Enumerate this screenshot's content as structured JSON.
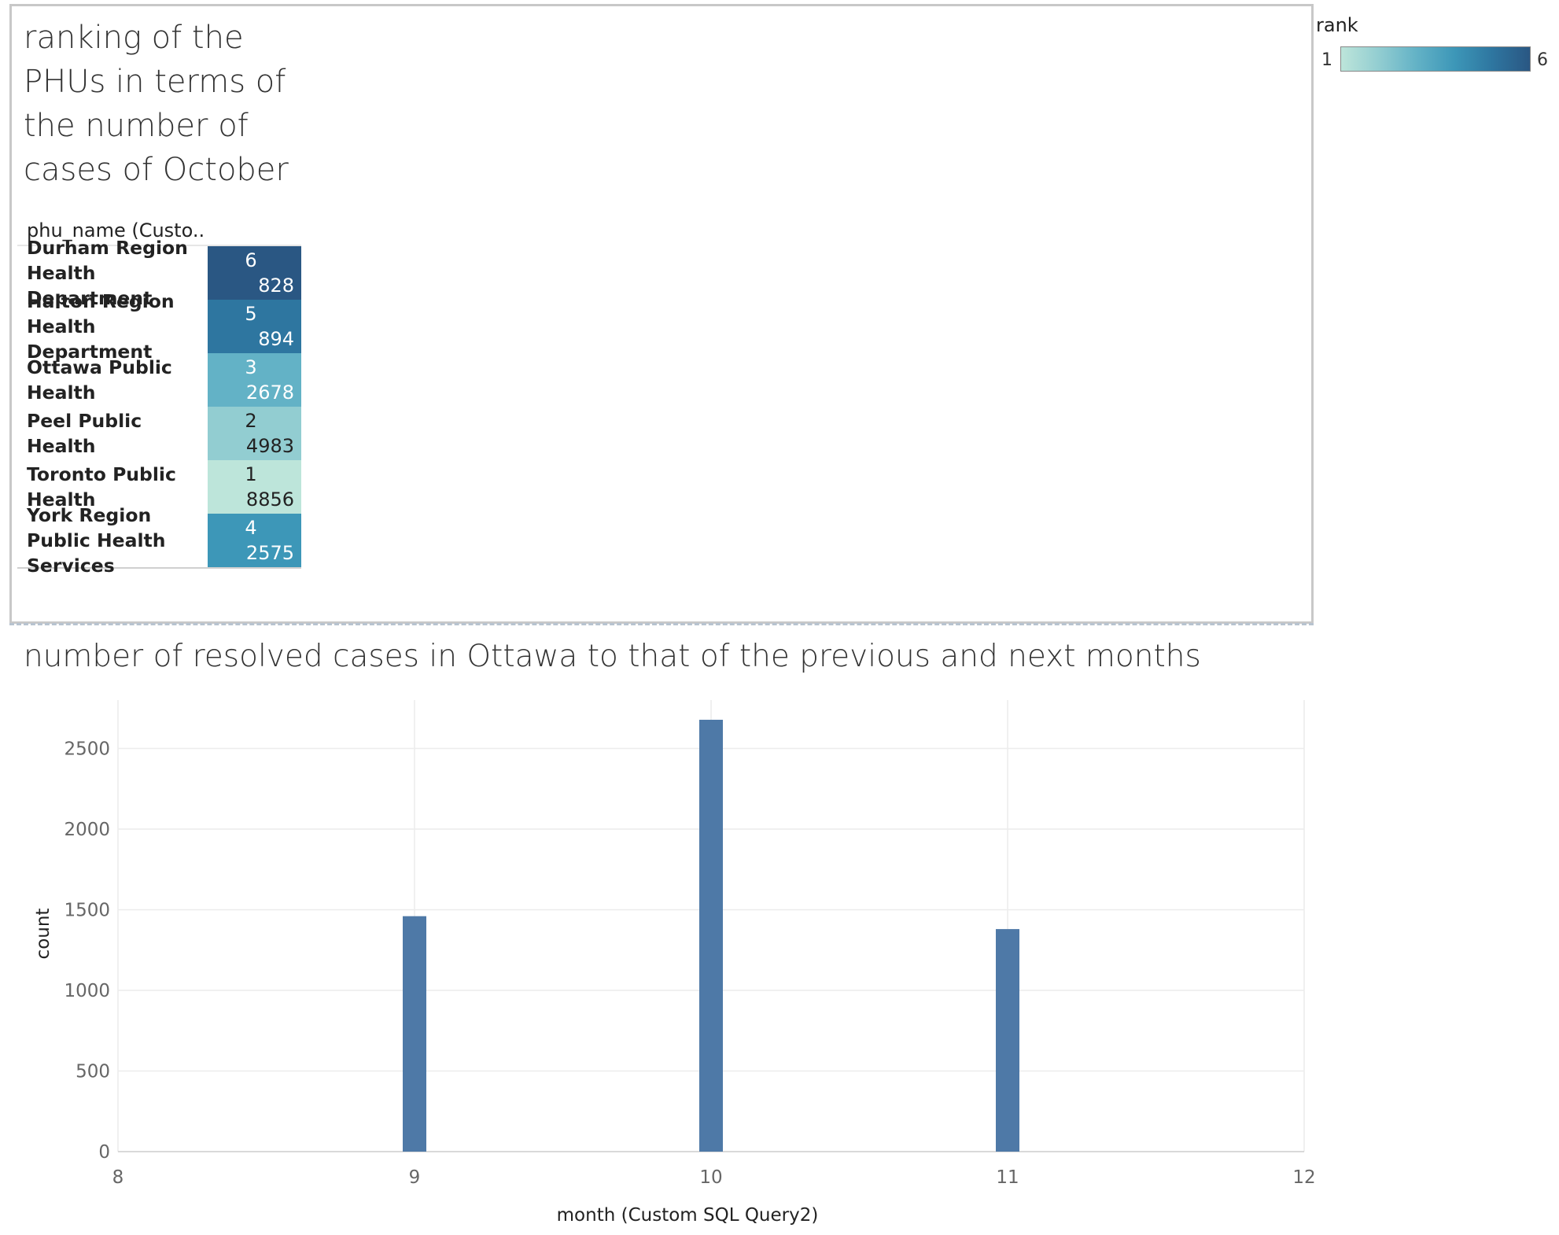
{
  "heatmap": {
    "title": "ranking of the PHUs in terms of the number of cases of October",
    "header": "phu_name (Custo..",
    "rows": [
      {
        "name": "Durham Region Health Department",
        "rank": "6",
        "count": "828"
      },
      {
        "name": "Halton Region Health Department",
        "rank": "5",
        "count": "894"
      },
      {
        "name": "Ottawa Public Health",
        "rank": "3",
        "count": "2678"
      },
      {
        "name": "Peel Public Health",
        "rank": "2",
        "count": "4983"
      },
      {
        "name": "Toronto Public Health",
        "rank": "1",
        "count": "8856"
      },
      {
        "name": "York Region Public Health Services",
        "rank": "4",
        "count": "2575"
      }
    ],
    "color_scale": [
      "#bde5da",
      "#92cdd1",
      "#63b2c6",
      "#3d97b8",
      "#2e76a0",
      "#2a5783"
    ]
  },
  "legend": {
    "title": "rank",
    "min_label": "1",
    "max_label": "6"
  },
  "chart_data": {
    "type": "bar",
    "title": "number of resolved cases in Ottawa to that of the previous and next months",
    "xlabel": "month (Custom SQL Query2)",
    "ylabel": "count",
    "x": [
      9,
      10,
      11
    ],
    "values": [
      1460,
      2678,
      1380
    ],
    "xlim": [
      8,
      12
    ],
    "ylim": [
      0,
      2800
    ],
    "xticks": [
      "8",
      "9",
      "10",
      "11",
      "12"
    ],
    "yticks": [
      "0",
      "500",
      "1000",
      "1500",
      "2000",
      "2500"
    ],
    "grid": true,
    "bar_color": "#4e79a7"
  }
}
